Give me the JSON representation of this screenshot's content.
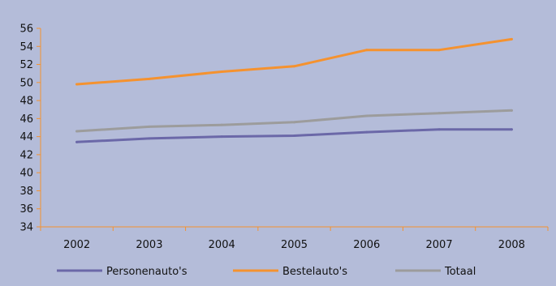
{
  "chart_data": {
    "type": "line",
    "title": "",
    "xlabel": "",
    "ylabel": "",
    "categories": [
      "2002",
      "2003",
      "2004",
      "2005",
      "2006",
      "2007",
      "2008"
    ],
    "y_ticks": [
      "34",
      "36",
      "38",
      "40",
      "42",
      "44",
      "46",
      "48",
      "50",
      "52",
      "54",
      "56"
    ],
    "ylim": [
      34,
      56
    ],
    "grid": false,
    "legend_position": "bottom",
    "series": [
      {
        "name": "Personenauto's",
        "color": "#6b68a8",
        "values": [
          43.4,
          43.8,
          44.0,
          44.1,
          44.5,
          44.8,
          44.8
        ]
      },
      {
        "name": "Bestelauto's",
        "color": "#f5922f",
        "values": [
          49.8,
          50.4,
          51.2,
          51.8,
          53.6,
          53.6,
          54.8
        ]
      },
      {
        "name": "Totaal",
        "color": "#9c9c9c",
        "values": [
          44.6,
          45.1,
          45.3,
          45.6,
          46.3,
          46.6,
          46.9
        ]
      }
    ],
    "colors": {
      "background": "#b4bcd9",
      "axis": "#f5922f"
    }
  }
}
